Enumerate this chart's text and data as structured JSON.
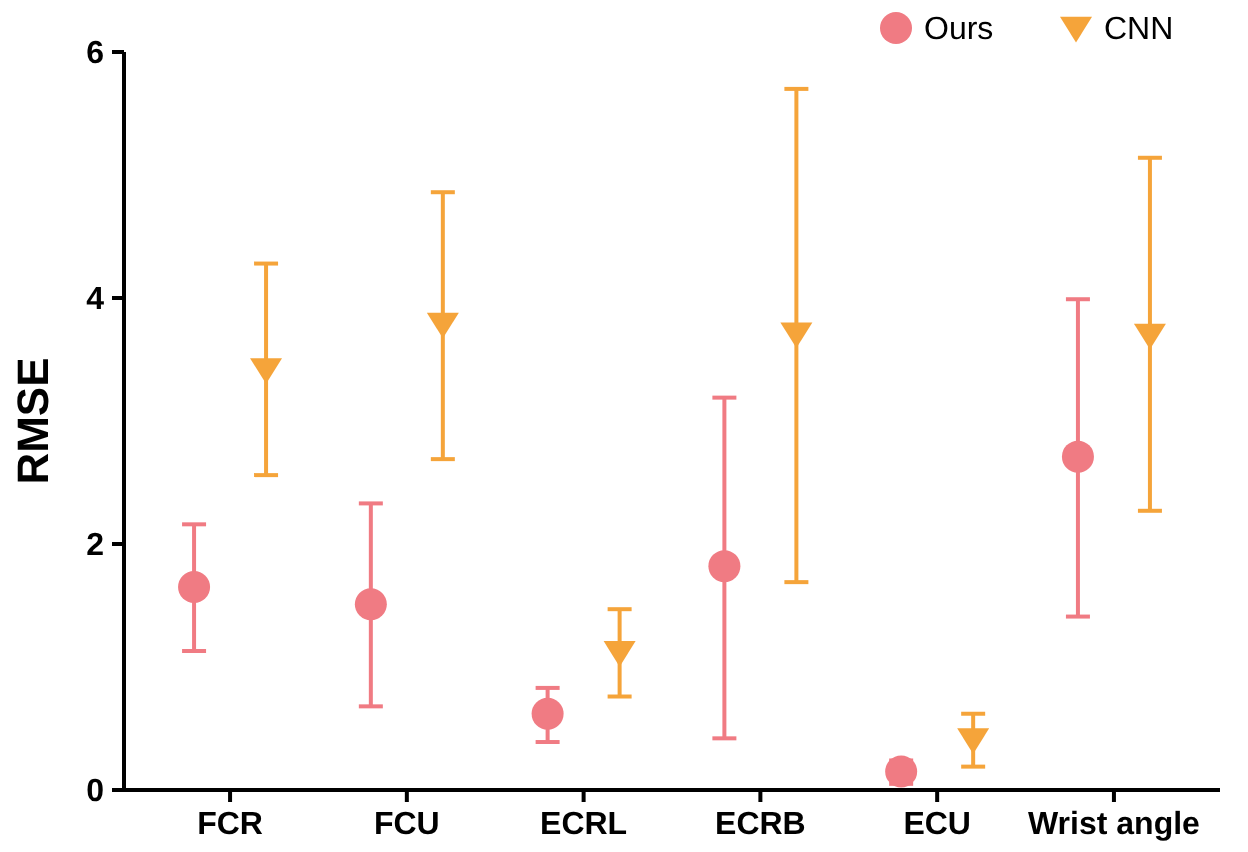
{
  "chart_data": {
    "type": "scatter",
    "ylabel": "RMSE",
    "categories": [
      "FCR",
      "FCU",
      "ECRL",
      "ECRB",
      "ECU",
      "Wrist angle"
    ],
    "ylim": [
      0,
      6
    ],
    "yticks": [
      0,
      2,
      4,
      6
    ],
    "grid": false,
    "legend": "top right",
    "series": [
      {
        "name": "Ours",
        "color": "#f07b83",
        "marker": "circle",
        "values": [
          1.65,
          1.51,
          0.62,
          1.82,
          0.15,
          2.71
        ],
        "errors": [
          [
            1.13,
            2.16
          ],
          [
            0.68,
            2.33
          ],
          [
            0.39,
            0.83
          ],
          [
            0.42,
            3.19
          ],
          [
            0.05,
            0.24
          ],
          [
            1.41,
            3.99
          ]
        ]
      },
      {
        "name": "CNN",
        "color": "#f5a43a",
        "marker": "triangle",
        "values": [
          3.42,
          3.79,
          1.12,
          3.71,
          0.41,
          3.7
        ],
        "errors": [
          [
            2.56,
            4.28
          ],
          [
            2.69,
            4.86
          ],
          [
            0.76,
            1.47
          ],
          [
            1.69,
            5.7
          ],
          [
            0.19,
            0.62
          ],
          [
            2.27,
            5.14
          ]
        ]
      }
    ]
  }
}
